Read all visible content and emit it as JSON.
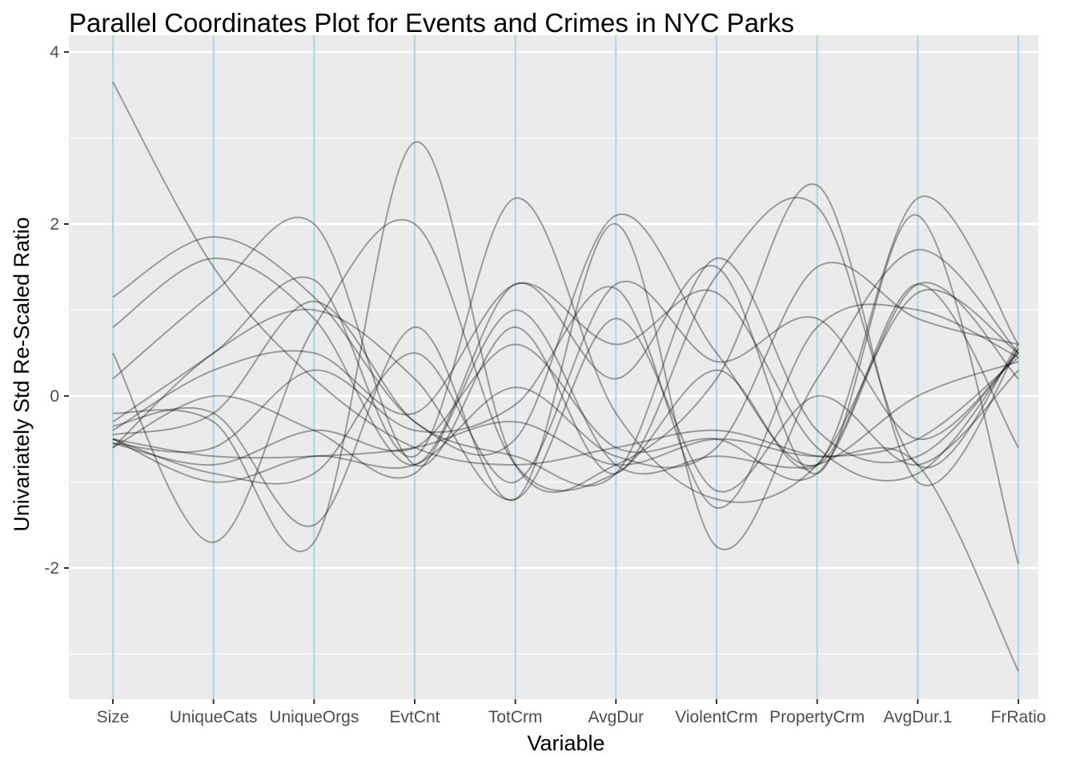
{
  "chart_data": {
    "type": "parallel_coordinates",
    "title": "Parallel Coordinates Plot for Events and Crimes in NYC Parks",
    "xlabel": "Variable",
    "ylabel": "Univariately Std Re-Scaled Ratio",
    "categories": [
      "Size",
      "UniqueCats",
      "UniqueOrgs",
      "EvtCnt",
      "TotCrm",
      "AvgDur",
      "ViolentCrm",
      "PropertyCrm",
      "AvgDur.1",
      "FrRatio"
    ],
    "ylim": [
      -3.5,
      4.0
    ],
    "yticks": [
      4,
      2,
      0,
      -2
    ],
    "ytick_labels": [
      "4",
      "2",
      "0",
      "-2"
    ],
    "grid": true,
    "axis_line_color": "#add8e6",
    "panel_color": "#ebebeb",
    "line_color": "#000000",
    "line_opacity": 0.35,
    "series": [
      {
        "values": [
          3.65,
          1.5,
          0.2,
          -0.6,
          -0.8,
          -0.6,
          -0.4,
          -0.7,
          -0.8,
          -3.2
        ]
      },
      {
        "values": [
          1.15,
          1.85,
          1.15,
          -0.3,
          -0.5,
          2.1,
          0.5,
          -0.8,
          1.3,
          -0.6
        ]
      },
      {
        "values": [
          0.8,
          1.6,
          0.9,
          -0.8,
          1.3,
          0.2,
          1.5,
          -0.9,
          2.1,
          -1.95
        ]
      },
      {
        "values": [
          0.5,
          -1.7,
          0.8,
          2.0,
          -0.8,
          -0.9,
          0.3,
          -0.8,
          2.3,
          0.6
        ]
      },
      {
        "values": [
          0.2,
          1.2,
          2.0,
          -0.8,
          0.8,
          -0.9,
          1.4,
          2.2,
          -0.8,
          0.6
        ]
      },
      {
        "values": [
          -0.2,
          -0.3,
          -1.7,
          2.95,
          -0.8,
          -0.8,
          0.2,
          2.45,
          -1.0,
          0.55
        ]
      },
      {
        "values": [
          -0.3,
          0.5,
          1.35,
          -0.7,
          2.3,
          -0.2,
          -1.2,
          -0.8,
          1.2,
          0.5
        ]
      },
      {
        "values": [
          -0.35,
          -0.2,
          -1.5,
          0.8,
          -1.2,
          2.0,
          -1.75,
          0.2,
          1.7,
          0.5
        ]
      },
      {
        "values": [
          -0.4,
          0.3,
          0.5,
          -0.2,
          1.3,
          0.6,
          1.2,
          -0.6,
          -0.9,
          0.55
        ]
      },
      {
        "values": [
          -0.5,
          -0.9,
          -0.9,
          0.5,
          -1.0,
          1.3,
          0.4,
          0.9,
          -0.5,
          0.5
        ]
      },
      {
        "values": [
          -0.55,
          -0.6,
          0.3,
          -0.4,
          -0.1,
          1.25,
          -1.3,
          0.8,
          1.0,
          0.45
        ]
      },
      {
        "values": [
          -0.6,
          0.0,
          -0.4,
          -0.9,
          1.0,
          -0.8,
          -0.7,
          -0.8,
          0.0,
          0.4
        ]
      },
      {
        "values": [
          -0.6,
          0.5,
          1.0,
          0.2,
          -1.2,
          0.9,
          -1.1,
          0.0,
          -0.8,
          0.3
        ]
      },
      {
        "values": [
          -0.55,
          -0.8,
          -0.4,
          -0.6,
          0.6,
          -0.6,
          -0.5,
          -0.9,
          1.3,
          0.2
        ]
      },
      {
        "values": [
          -0.5,
          -1.0,
          -0.7,
          -0.8,
          0.1,
          -0.7,
          -0.6,
          1.5,
          0.9,
          0.6
        ]
      },
      {
        "values": [
          -0.45,
          -0.2,
          1.1,
          -0.3,
          -0.7,
          -0.9,
          1.6,
          -0.4,
          -0.7,
          0.5
        ]
      },
      {
        "values": [
          -0.5,
          -0.7,
          -0.7,
          -0.6,
          -0.3,
          -0.8,
          -0.5,
          -0.7,
          -0.5,
          0.45
        ]
      }
    ]
  }
}
